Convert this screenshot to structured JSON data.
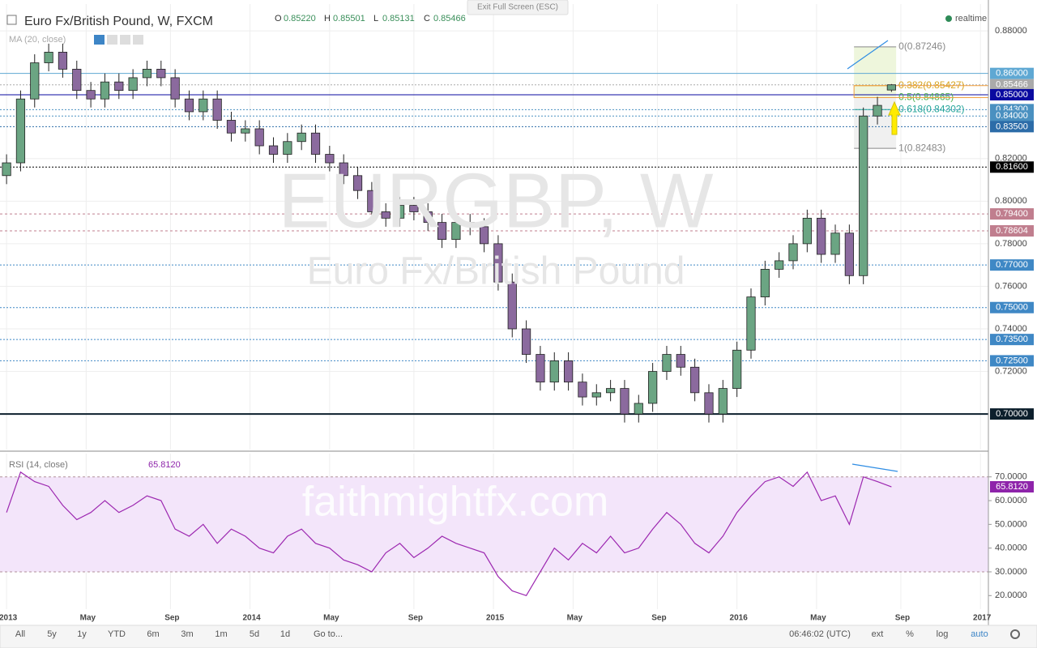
{
  "header": {
    "symbol": "Euro Fx/British Pound, W, FXCM",
    "o_label": "O",
    "open": "0.85220",
    "h_label": "H",
    "high": "0.85501",
    "l_label": "L",
    "low": "0.85131",
    "c_label": "C",
    "close": "0.85466",
    "status": "realtime",
    "exit_button": "Exit Full Screen (ESC)",
    "ma_study": "MA (20, close)"
  },
  "watermark": {
    "ticker": "EURGBP, W",
    "name": "Euro Fx/British Pound",
    "site": "faithmightfx.com"
  },
  "chart_data": [
    {
      "type": "candlestick",
      "up_color": "#6ba583",
      "down_color": "#8b6a9e",
      "x": [
        0,
        3,
        6,
        9,
        12,
        15,
        18,
        21,
        24,
        27,
        30,
        33,
        36,
        39,
        42,
        45,
        48,
        51,
        54,
        57,
        60,
        63,
        66,
        69,
        72,
        75,
        78,
        81,
        84,
        87,
        90,
        93,
        96,
        99,
        102,
        105,
        108,
        111,
        114,
        117,
        120,
        123,
        126,
        129,
        132,
        135,
        138,
        141,
        144,
        147,
        150,
        153,
        156,
        159,
        162,
        165,
        168,
        171,
        174,
        177,
        180,
        183,
        186,
        189
      ],
      "open": [
        0.812,
        0.818,
        0.848,
        0.865,
        0.87,
        0.862,
        0.852,
        0.848,
        0.856,
        0.852,
        0.858,
        0.862,
        0.858,
        0.848,
        0.842,
        0.848,
        0.838,
        0.832,
        0.834,
        0.826,
        0.822,
        0.828,
        0.832,
        0.822,
        0.818,
        0.812,
        0.805,
        0.795,
        0.792,
        0.798,
        0.795,
        0.79,
        0.782,
        0.79,
        0.788,
        0.78,
        0.762,
        0.74,
        0.728,
        0.715,
        0.725,
        0.715,
        0.708,
        0.71,
        0.712,
        0.7,
        0.705,
        0.72,
        0.728,
        0.722,
        0.71,
        0.7,
        0.712,
        0.73,
        0.755,
        0.768,
        0.772,
        0.78,
        0.792,
        0.775,
        0.785,
        0.765,
        0.84,
        0.8522
      ],
      "high": [
        0.822,
        0.852,
        0.869,
        0.874,
        0.874,
        0.866,
        0.856,
        0.86,
        0.86,
        0.862,
        0.866,
        0.866,
        0.862,
        0.852,
        0.852,
        0.852,
        0.842,
        0.838,
        0.838,
        0.83,
        0.832,
        0.836,
        0.836,
        0.826,
        0.822,
        0.816,
        0.809,
        0.799,
        0.802,
        0.802,
        0.799,
        0.794,
        0.794,
        0.794,
        0.792,
        0.784,
        0.766,
        0.744,
        0.732,
        0.729,
        0.729,
        0.719,
        0.714,
        0.716,
        0.716,
        0.709,
        0.724,
        0.732,
        0.732,
        0.726,
        0.714,
        0.716,
        0.734,
        0.759,
        0.772,
        0.776,
        0.784,
        0.796,
        0.796,
        0.789,
        0.789,
        0.844,
        0.849,
        0.85501
      ],
      "low": [
        0.808,
        0.814,
        0.844,
        0.861,
        0.858,
        0.848,
        0.844,
        0.844,
        0.848,
        0.848,
        0.854,
        0.854,
        0.844,
        0.838,
        0.838,
        0.834,
        0.828,
        0.828,
        0.822,
        0.818,
        0.818,
        0.824,
        0.818,
        0.814,
        0.808,
        0.801,
        0.791,
        0.788,
        0.788,
        0.791,
        0.786,
        0.778,
        0.778,
        0.784,
        0.776,
        0.758,
        0.736,
        0.724,
        0.711,
        0.711,
        0.711,
        0.704,
        0.704,
        0.706,
        0.696,
        0.696,
        0.701,
        0.716,
        0.718,
        0.706,
        0.696,
        0.696,
        0.708,
        0.726,
        0.751,
        0.764,
        0.768,
        0.776,
        0.771,
        0.771,
        0.761,
        0.761,
        0.836,
        0.85131
      ],
      "close": [
        0.818,
        0.848,
        0.865,
        0.87,
        0.862,
        0.852,
        0.848,
        0.856,
        0.852,
        0.858,
        0.862,
        0.858,
        0.848,
        0.842,
        0.848,
        0.838,
        0.832,
        0.834,
        0.826,
        0.822,
        0.828,
        0.832,
        0.822,
        0.818,
        0.812,
        0.805,
        0.795,
        0.792,
        0.798,
        0.795,
        0.79,
        0.782,
        0.79,
        0.788,
        0.78,
        0.762,
        0.74,
        0.728,
        0.715,
        0.725,
        0.715,
        0.708,
        0.71,
        0.712,
        0.7,
        0.705,
        0.72,
        0.728,
        0.722,
        0.71,
        0.7,
        0.712,
        0.73,
        0.755,
        0.768,
        0.772,
        0.78,
        0.792,
        0.775,
        0.785,
        0.765,
        0.84,
        0.845,
        0.85466
      ],
      "xlim": [
        -1.4,
        209.7
      ],
      "xticks": [
        {
          "value": 0,
          "label": "2013"
        },
        {
          "value": 17,
          "label": "May"
        },
        {
          "value": 35,
          "label": "Sep"
        },
        {
          "value": 52,
          "label": "2014"
        },
        {
          "value": 69,
          "label": "May"
        },
        {
          "value": 87,
          "label": "Sep"
        },
        {
          "value": 104,
          "label": "2015"
        },
        {
          "value": 121,
          "label": "May"
        },
        {
          "value": 139,
          "label": "Sep"
        },
        {
          "value": 156,
          "label": "2016"
        },
        {
          "value": 173,
          "label": "May"
        },
        {
          "value": 191,
          "label": "Sep"
        },
        {
          "value": 208,
          "label": "2017"
        }
      ],
      "ylim": [
        0.6833,
        0.8926
      ],
      "yticks": [
        {
          "value": 0.88,
          "label": "0.88000"
        },
        {
          "value": 0.82,
          "label": "0.82000"
        },
        {
          "value": 0.8,
          "label": "0.80000"
        },
        {
          "value": 0.78,
          "label": "0.78000"
        },
        {
          "value": 0.76,
          "label": "0.76000"
        },
        {
          "value": 0.74,
          "label": "0.74000"
        },
        {
          "value": 0.72,
          "label": "0.72000"
        }
      ],
      "grid": true,
      "levels": [
        {
          "value": 0.86,
          "label": "0.86000",
          "color": "#5fa8d3",
          "dash": "none"
        },
        {
          "value": 0.85466,
          "label": "0.85466",
          "color": "#aaaaaa",
          "dash": "2 2"
        },
        {
          "value": 0.85,
          "label": "0.85000",
          "color": "#0a0aa0",
          "dash": "none"
        },
        {
          "value": 0.843,
          "label": "0.84300",
          "color": "#4a90c0",
          "dash": "2 2"
        },
        {
          "value": 0.84,
          "label": "0.84000",
          "color": "#4a90c0",
          "dash": "2 2"
        },
        {
          "value": 0.835,
          "label": "0.83500",
          "color": "#2c6ca8",
          "dash": "2 2"
        },
        {
          "value": 0.816,
          "label": "0.81600",
          "color": "#000000",
          "dash": "2 2"
        },
        {
          "value": 0.794,
          "label": "0.79400",
          "color": "#c07e8e",
          "dash": "3 3"
        },
        {
          "value": 0.78604,
          "label": "0.78604",
          "color": "#c07e8e",
          "dash": "3 3"
        },
        {
          "value": 0.77,
          "label": "0.77000",
          "color": "#3f88c5",
          "dash": "2 2"
        },
        {
          "value": 0.75,
          "label": "0.75000",
          "color": "#3f88c5",
          "dash": "2 2"
        },
        {
          "value": 0.735,
          "label": "0.73500",
          "color": "#3f88c5",
          "dash": "2 2"
        },
        {
          "value": 0.725,
          "label": "0.72500",
          "color": "#3f88c5",
          "dash": "2 2"
        },
        {
          "value": 0.7,
          "label": "0.70000",
          "color": "#0c1f2c",
          "dash": "none"
        }
      ],
      "fib": {
        "x": [
          181,
          190
        ],
        "levels": [
          {
            "value": 0.87246,
            "label": "0(0.87246)",
            "color": "#888888"
          },
          {
            "value": 0.85427,
            "label": "0.382(0.85427)",
            "color": "#d9a520"
          },
          {
            "value": 0.84865,
            "label": "0.5(0.84865)",
            "color": "#4caf50"
          },
          {
            "value": 0.84302,
            "label": "0.618(0.84302)",
            "color": "#26a69a"
          },
          {
            "value": 0.82483,
            "label": "1(0.82483)",
            "color": "#888888"
          }
        ]
      }
    },
    {
      "type": "line",
      "study": "RSI (14, close)",
      "color": "#9c27b0",
      "current": {
        "value": 65.812,
        "label": "65.8120"
      },
      "x": [
        0,
        3,
        6,
        9,
        12,
        15,
        18,
        21,
        24,
        27,
        30,
        33,
        36,
        39,
        42,
        45,
        48,
        51,
        54,
        57,
        60,
        63,
        66,
        69,
        72,
        75,
        78,
        81,
        84,
        87,
        90,
        93,
        96,
        99,
        102,
        105,
        108,
        111,
        114,
        117,
        120,
        123,
        126,
        129,
        132,
        135,
        138,
        141,
        144,
        147,
        150,
        153,
        156,
        159,
        162,
        165,
        168,
        171,
        174,
        177,
        180,
        183,
        186,
        189
      ],
      "values": [
        55,
        72,
        68,
        66,
        58,
        52,
        55,
        60,
        55,
        58,
        62,
        60,
        48,
        45,
        50,
        42,
        48,
        45,
        40,
        38,
        45,
        48,
        42,
        40,
        35,
        33,
        30,
        38,
        42,
        36,
        40,
        45,
        42,
        40,
        38,
        28,
        22,
        20,
        30,
        40,
        35,
        42,
        38,
        45,
        38,
        40,
        48,
        55,
        50,
        42,
        38,
        45,
        55,
        62,
        68,
        70,
        66,
        72,
        60,
        62,
        50,
        70,
        68,
        65.812
      ],
      "band": [
        30,
        70
      ],
      "ylim": [
        14.3,
        79.8
      ],
      "yticks": [
        {
          "value": 70,
          "label": "70.0000"
        },
        {
          "value": 60,
          "label": "60.0000"
        },
        {
          "value": 50,
          "label": "50.0000"
        },
        {
          "value": 40,
          "label": "40.0000"
        },
        {
          "value": 30,
          "label": "30.0000"
        },
        {
          "value": 20,
          "label": "20.0000"
        }
      ]
    }
  ],
  "toolbar": {
    "ranges": [
      "All",
      "5y",
      "1y",
      "YTD",
      "6m",
      "3m",
      "1m",
      "5d",
      "1d",
      "Go to..."
    ],
    "clock": "06:46:02 (UTC)",
    "options": [
      "ext",
      "%",
      "log",
      "auto"
    ]
  }
}
